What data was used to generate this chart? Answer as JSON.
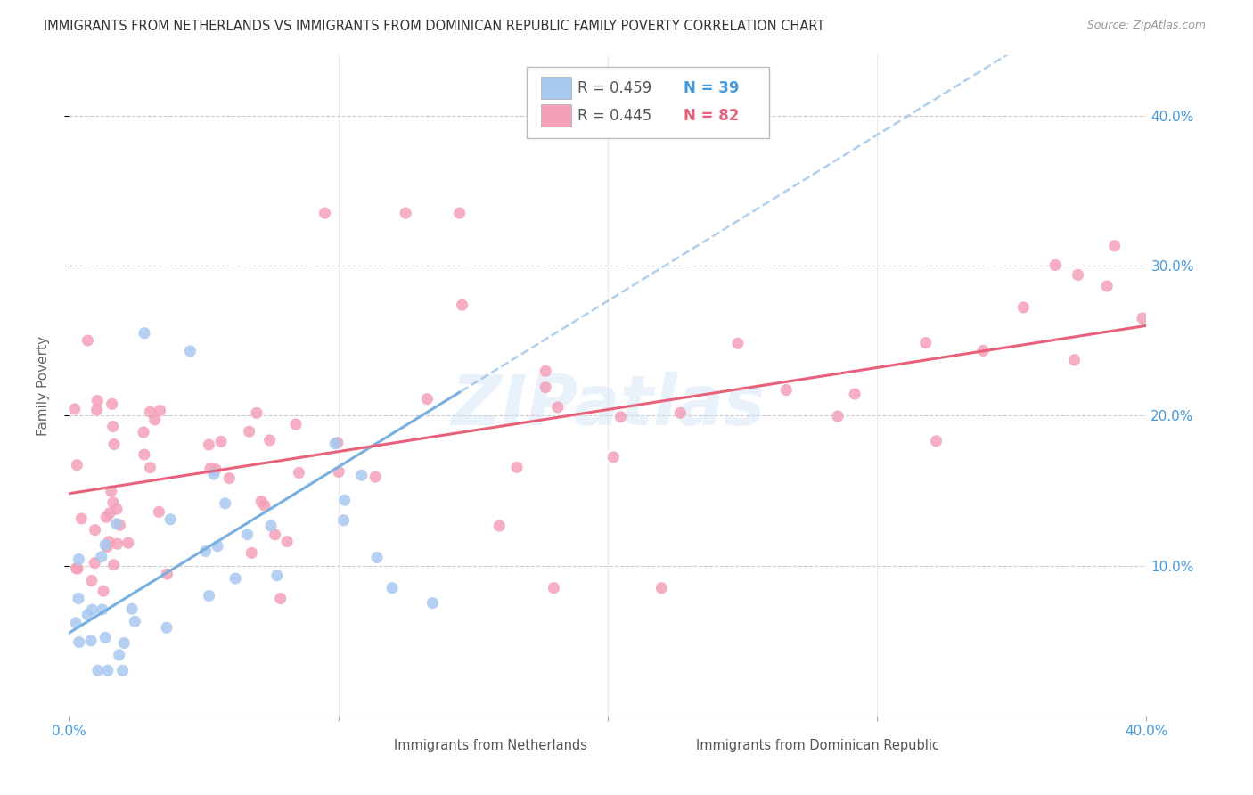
{
  "title": "IMMIGRANTS FROM NETHERLANDS VS IMMIGRANTS FROM DOMINICAN REPUBLIC FAMILY POVERTY CORRELATION CHART",
  "source": "Source: ZipAtlas.com",
  "ylabel": "Family Poverty",
  "y_tick_labels": [
    "10.0%",
    "20.0%",
    "30.0%",
    "40.0%"
  ],
  "y_tick_values": [
    0.1,
    0.2,
    0.3,
    0.4
  ],
  "x_range": [
    0.0,
    0.4
  ],
  "y_range": [
    0.0,
    0.44
  ],
  "legend_r1": "R = 0.459",
  "legend_n1": "N = 39",
  "legend_r2": "R = 0.445",
  "legend_n2": "N = 82",
  "color_netherlands": "#a8c8f0",
  "color_dr": "#f4a0b8",
  "color_netherlands_line": "#7ab0e0",
  "color_dr_line": "#e8607a",
  "color_axis_labels": "#4499dd",
  "watermark": "ZIPatlas"
}
